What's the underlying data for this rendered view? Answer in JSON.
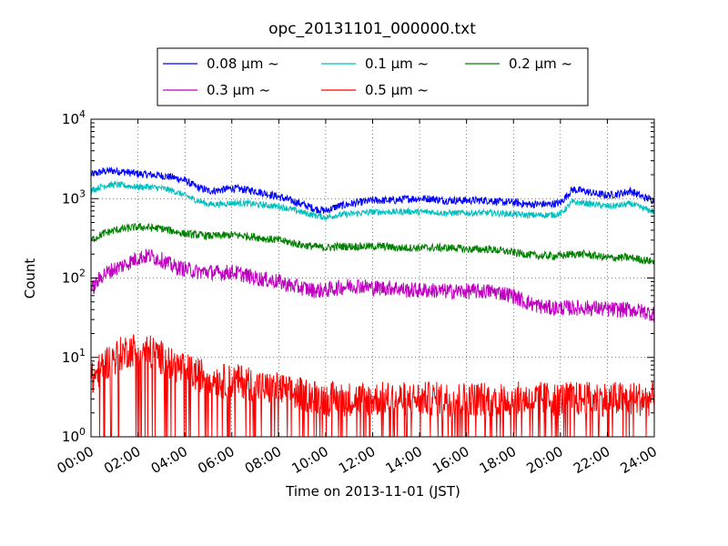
{
  "chart_data": {
    "type": "line",
    "title": "opc_20131101_000000.txt",
    "xlabel": "Time on 2013-11-01 (JST)",
    "ylabel": "Count",
    "xlim": [
      "00:00",
      "24:00"
    ],
    "ylim": [
      1,
      10000
    ],
    "yscale": "log",
    "grid": true,
    "legend_position": "top-center",
    "x_ticks": [
      "00:00",
      "02:00",
      "04:00",
      "06:00",
      "08:00",
      "10:00",
      "12:00",
      "14:00",
      "16:00",
      "18:00",
      "20:00",
      "22:00",
      "24:00"
    ],
    "y_ticks": [
      {
        "base": "10",
        "exp": "0",
        "value": 1
      },
      {
        "base": "10",
        "exp": "1",
        "value": 10
      },
      {
        "base": "10",
        "exp": "2",
        "value": 100
      },
      {
        "base": "10",
        "exp": "3",
        "value": 1000
      },
      {
        "base": "10",
        "exp": "4",
        "value": 10000
      }
    ],
    "x_hours": [
      0,
      0.5,
      1,
      1.5,
      2,
      2.5,
      3,
      3.5,
      4,
      4.5,
      5,
      5.5,
      6,
      6.5,
      7,
      7.5,
      8,
      8.5,
      9,
      9.5,
      10,
      10.5,
      11,
      11.5,
      12,
      12.5,
      13,
      13.5,
      14,
      14.5,
      15,
      15.5,
      16,
      16.5,
      17,
      17.5,
      18,
      18.5,
      19,
      19.5,
      20,
      20.5,
      21,
      21.5,
      22,
      22.5,
      23,
      23.5,
      24
    ],
    "series": [
      {
        "name": "0.08 μm ~",
        "color": "#0000ff",
        "noise": 0.05,
        "values": [
          2000,
          2200,
          2250,
          2150,
          2050,
          2000,
          1950,
          1850,
          1700,
          1400,
          1250,
          1280,
          1350,
          1300,
          1250,
          1150,
          1050,
          950,
          850,
          750,
          700,
          800,
          850,
          900,
          950,
          950,
          950,
          1000,
          1000,
          1000,
          950,
          950,
          950,
          950,
          950,
          900,
          900,
          850,
          850,
          850,
          880,
          1300,
          1250,
          1150,
          1100,
          1150,
          1250,
          1050,
          950
        ]
      },
      {
        "name": "0.1 μm ~",
        "color": "#00bfbf",
        "noise": 0.04,
        "values": [
          1250,
          1450,
          1500,
          1450,
          1400,
          1400,
          1350,
          1250,
          1100,
          950,
          850,
          850,
          880,
          880,
          850,
          820,
          800,
          740,
          670,
          620,
          580,
          620,
          640,
          660,
          680,
          680,
          680,
          690,
          680,
          680,
          660,
          660,
          660,
          660,
          660,
          650,
          640,
          620,
          620,
          620,
          640,
          900,
          880,
          840,
          800,
          820,
          860,
          760,
          680
        ]
      },
      {
        "name": "0.2 μm ~",
        "color": "#008000",
        "noise": 0.05,
        "values": [
          300,
          360,
          400,
          420,
          440,
          430,
          420,
          390,
          360,
          350,
          340,
          340,
          350,
          340,
          330,
          310,
          300,
          280,
          260,
          250,
          240,
          250,
          250,
          250,
          250,
          250,
          240,
          240,
          240,
          240,
          240,
          240,
          230,
          230,
          230,
          220,
          210,
          200,
          190,
          190,
          190,
          200,
          200,
          190,
          180,
          180,
          180,
          170,
          160
        ]
      },
      {
        "name": "0.3 μm ~",
        "color": "#bf00bf",
        "noise": 0.1,
        "values": [
          70,
          110,
          130,
          150,
          180,
          190,
          170,
          140,
          130,
          120,
          120,
          115,
          120,
          110,
          100,
          95,
          90,
          80,
          75,
          70,
          70,
          75,
          80,
          80,
          75,
          75,
          75,
          70,
          70,
          70,
          68,
          68,
          68,
          68,
          68,
          65,
          60,
          50,
          45,
          42,
          42,
          42,
          42,
          42,
          40,
          40,
          40,
          38,
          35
        ]
      },
      {
        "name": "0.5 μm ~",
        "color": "#ff0000",
        "noise": 0.22,
        "values": [
          5,
          8,
          10,
          12,
          13,
          12,
          10,
          8,
          7,
          6,
          6,
          5,
          5,
          5,
          4.5,
          4,
          4,
          3.5,
          3.5,
          3.2,
          3,
          3,
          3,
          3,
          3,
          3,
          3,
          3,
          3,
          3,
          3,
          3,
          3,
          3,
          3,
          3,
          3,
          3,
          3,
          3,
          3,
          3,
          3,
          3,
          3,
          3,
          3,
          3,
          3
        ]
      }
    ]
  }
}
